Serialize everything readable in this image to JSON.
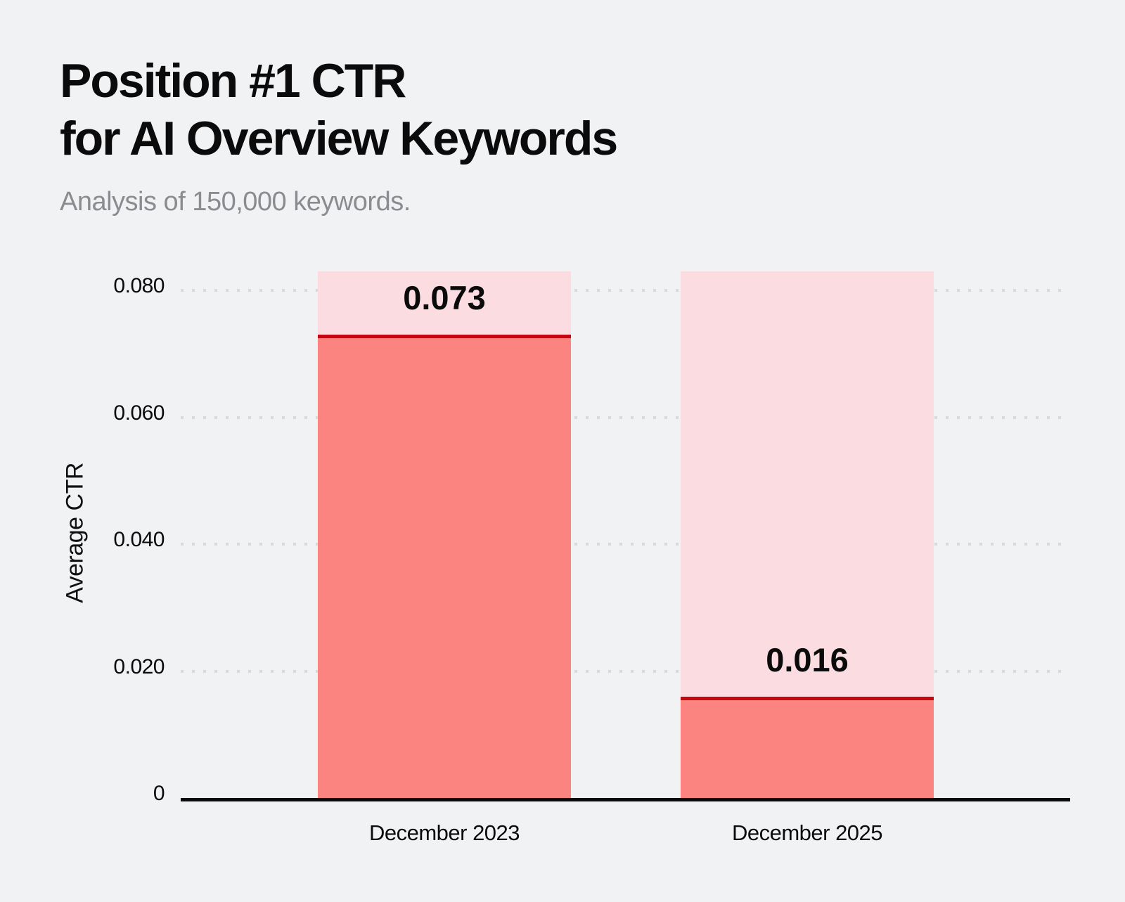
{
  "page": {
    "background": "#F1F2F4"
  },
  "header": {
    "title_line1": "Position #1 CTR",
    "title_line2": "for AI Overview Keywords",
    "subtitle": "Analysis of 150,000 keywords."
  },
  "chart_data": {
    "type": "bar",
    "title": "Position #1 CTR for AI Overview Keywords",
    "subtitle": "Analysis of 150,000 keywords.",
    "categories": [
      "December 2023",
      "December 2025"
    ],
    "values": [
      0.073,
      0.016
    ],
    "value_labels": [
      "0.073",
      "0.016"
    ],
    "xlabel": "",
    "ylabel": "Average CTR",
    "ylim": [
      0,
      0.083
    ],
    "yticks": [
      {
        "value": 0.08,
        "label": "0.080"
      },
      {
        "value": 0.06,
        "label": "0.060"
      },
      {
        "value": 0.04,
        "label": "0.040"
      },
      {
        "value": 0.02,
        "label": "0.020"
      },
      {
        "value": 0,
        "label": "0"
      }
    ],
    "grid": "horizontal-dotted",
    "legend": "none",
    "bar_style": "value bar over full-height light track, dark red marker line at value top",
    "colors": {
      "bar_fill": "#FB8480",
      "bar_track": "#FBDCE0",
      "marker_line": "#C3060F",
      "grid_dot": "#D8D9DB",
      "axis_line": "#0A0A0A",
      "text": "#0B0B0C",
      "subtitle_text": "#8A8C90"
    }
  }
}
